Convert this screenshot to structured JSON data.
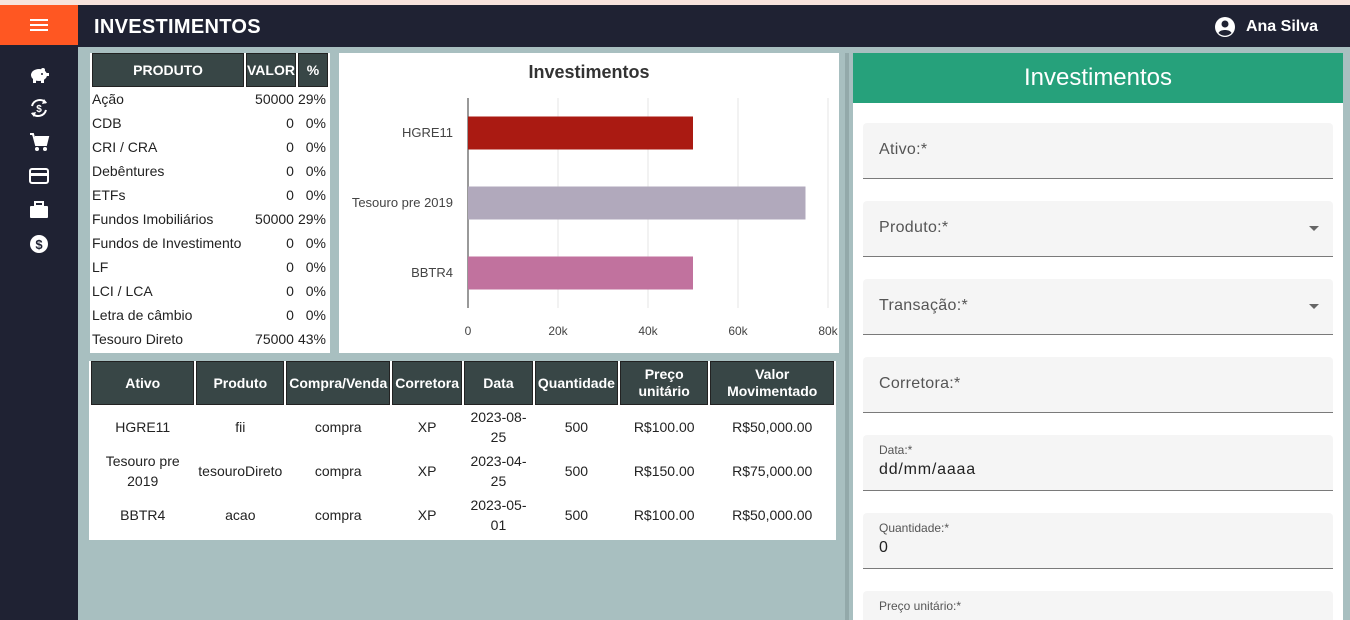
{
  "app": {
    "title": "INVESTIMENTOS",
    "user": "Ana Silva"
  },
  "sidebar": {
    "icons": [
      "piggy-bank-icon",
      "currency-exchange-icon",
      "cart-icon",
      "credit-card-icon",
      "briefcase-icon",
      "dollar-circle-icon"
    ]
  },
  "products_table": {
    "headers": [
      "PRODUTO",
      "VALOR",
      "%"
    ],
    "rows": [
      [
        "Ação",
        "50000",
        "29%"
      ],
      [
        "CDB",
        "0",
        "0%"
      ],
      [
        "CRI / CRA",
        "0",
        "0%"
      ],
      [
        "Debêntures",
        "0",
        "0%"
      ],
      [
        "ETFs",
        "0",
        "0%"
      ],
      [
        "Fundos Imobiliários",
        "50000",
        "29%"
      ],
      [
        "Fundos de Investimento",
        "0",
        "0%"
      ],
      [
        "LF",
        "0",
        "0%"
      ],
      [
        "LCI / LCA",
        "0",
        "0%"
      ],
      [
        "Letra de câmbio",
        "0",
        "0%"
      ],
      [
        "Tesouro Direto",
        "75000",
        "43%"
      ]
    ]
  },
  "chart_data": {
    "type": "bar",
    "orientation": "horizontal",
    "title": "Investimentos",
    "categories": [
      "HGRE11",
      "Tesouro pre 2019",
      "BBTR4"
    ],
    "values": [
      50000,
      75000,
      50000
    ],
    "colors": [
      "#aa1a12",
      "#b1a9bc",
      "#c1729e"
    ],
    "xlim": [
      0,
      80000
    ],
    "x_ticks": [
      "0",
      "20k",
      "40k",
      "60k",
      "80k"
    ],
    "grid": true
  },
  "movements_table": {
    "headers": [
      "Ativo",
      "Produto",
      "Compra/Venda",
      "Corretora",
      "Data",
      "Quantidade",
      "Preço unitário",
      "Valor Movimentado"
    ],
    "rows": [
      [
        "HGRE11",
        "fii",
        "compra",
        "XP",
        "2023-08-25",
        "500",
        "R$100.00",
        "R$50,000.00"
      ],
      [
        "Tesouro pre 2019",
        "tesouroDireto",
        "compra",
        "XP",
        "2023-04-25",
        "500",
        "R$150.00",
        "R$75,000.00"
      ],
      [
        "BBTR4",
        "acao",
        "compra",
        "XP",
        "2023-05-01",
        "500",
        "R$100.00",
        "R$50,000.00"
      ]
    ]
  },
  "form": {
    "title": "Investimentos",
    "ativo_label": "Ativo:*",
    "produto_label": "Produto:*",
    "transacao_label": "Transação:*",
    "corretora_label": "Corretora:*",
    "data_label": "Data:*",
    "data_value": "dd/mm/aaaa",
    "quantidade_label": "Quantidade:*",
    "quantidade_value": "0",
    "preco_label": "Preço unitário:*"
  }
}
